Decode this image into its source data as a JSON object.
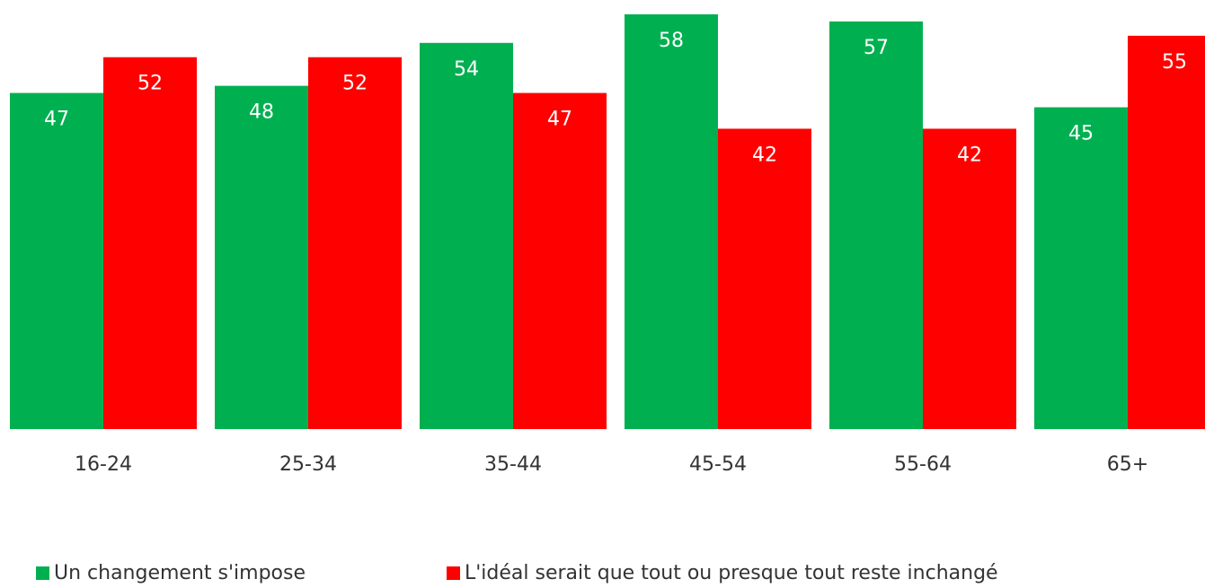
{
  "chart_data": {
    "type": "bar",
    "categories": [
      "16-24",
      "25-34",
      "35-44",
      "45-54",
      "55-64",
      "65+"
    ],
    "series": [
      {
        "name": "Un changement s'impose",
        "color": "#00b050",
        "values": [
          47,
          48,
          54,
          58,
          57,
          45
        ]
      },
      {
        "name": "L'idéal serait que tout ou presque tout reste inchangé",
        "color": "#ff0000",
        "values": [
          52,
          52,
          47,
          42,
          42,
          55
        ]
      }
    ],
    "ylim": [
      0,
      60
    ],
    "legend": "bottom"
  }
}
